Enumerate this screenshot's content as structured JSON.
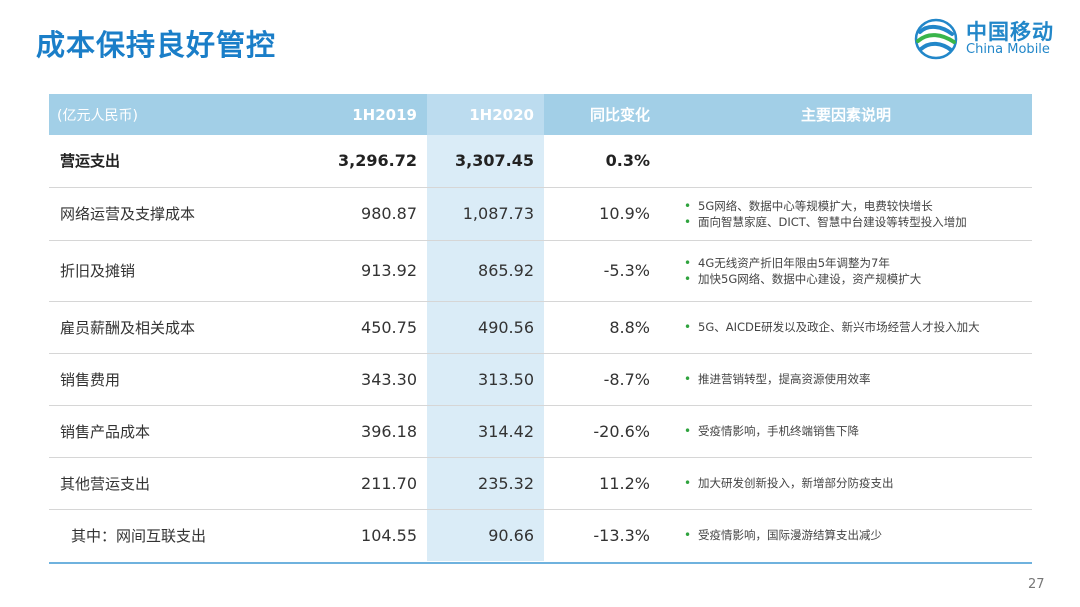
{
  "title": "成本保持良好管控",
  "logo": {
    "cn": "中国移动",
    "en": "China Mobile",
    "icon": "china-mobile-logo-icon"
  },
  "table": {
    "headers": [
      "(亿元人民币)",
      "1H2019",
      "1H2020",
      "同比变化",
      "主要因素说明"
    ],
    "rows": [
      {
        "label": "营运支出",
        "v2019": "3,296.72",
        "v2020": "3,307.45",
        "change": "0.3%",
        "notes": []
      },
      {
        "label": "网络运营及支撑成本",
        "v2019": "980.87",
        "v2020": "1,087.73",
        "change": "10.9%",
        "notes": [
          "5G网络、数据中心等规模扩大，电费较快增长",
          "面向智慧家庭、DICT、智慧中台建设等转型投入增加"
        ]
      },
      {
        "label": "折旧及摊销",
        "v2019": "913.92",
        "v2020": "865.92",
        "change": "-5.3%",
        "notes": [
          "4G无线资产折旧年限由5年调整为7年",
          "加快5G网络、数据中心建设，资产规模扩大"
        ]
      },
      {
        "label": "雇员薪酬及相关成本",
        "v2019": "450.75",
        "v2020": "490.56",
        "change": "8.8%",
        "notes": [
          "5G、AICDE研发以及政企、新兴市场经营人才投入加大"
        ]
      },
      {
        "label": "销售费用",
        "v2019": "343.30",
        "v2020": "313.50",
        "change": "-8.7%",
        "notes": [
          "推进营销转型，提高资源使用效率"
        ]
      },
      {
        "label": "销售产品成本",
        "v2019": "396.18",
        "v2020": "314.42",
        "change": "-20.6%",
        "notes": [
          "受疫情影响，手机终端销售下降"
        ]
      },
      {
        "label": "其他营运支出",
        "v2019": "211.70",
        "v2020": "235.32",
        "change": "11.2%",
        "notes": [
          "加大研发创新投入，新增部分防疫支出"
        ]
      },
      {
        "label": "其中：网间互联支出",
        "v2019": "104.55",
        "v2020": "90.66",
        "change": "-13.3%",
        "notes": [
          "受疫情影响，国际漫游结算支出减少"
        ]
      }
    ]
  },
  "page_number": "27",
  "colors": {
    "title": "#1a7ec8",
    "header_bg": "#a2cfe7",
    "highlight_col": "#daecf7",
    "bullet": "#2fa33e",
    "accent_line": "#6fb2de"
  }
}
